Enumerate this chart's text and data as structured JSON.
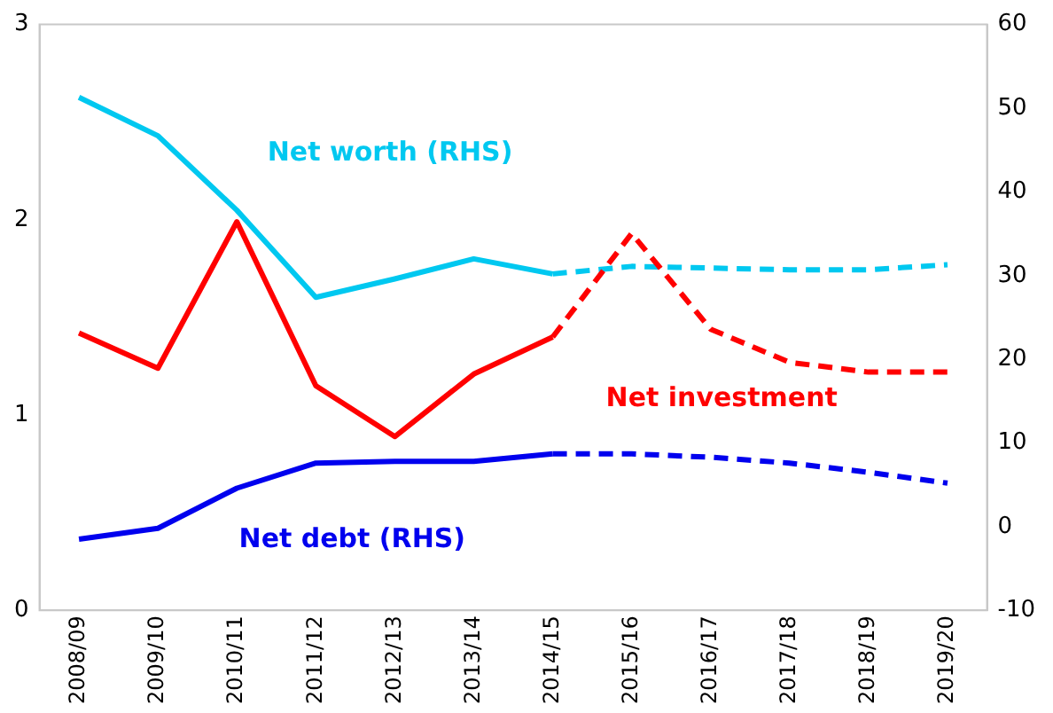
{
  "chart_data": {
    "type": "line",
    "categories": [
      "2008/09",
      "2009/10",
      "2010/11",
      "2011/12",
      "2012/13",
      "2013/14",
      "2014/15",
      "2015/16",
      "2016/17",
      "2017/18",
      "2018/19",
      "2019/20"
    ],
    "series": [
      {
        "name": "Net investment",
        "color": "#ff0000",
        "line_style": "solid",
        "values": [
          1.42,
          1.24,
          1.99,
          1.15,
          0.89,
          1.21,
          1.4,
          null,
          null,
          null,
          null,
          null
        ]
      },
      {
        "color": "#ff0000",
        "line_style": "dashed",
        "values": [
          null,
          null,
          null,
          null,
          null,
          null,
          1.4,
          1.93,
          1.44,
          1.27,
          1.22,
          1.22
        ]
      },
      {
        "name": "Net worth (RHS)",
        "color": "#00c8f0",
        "line_style": "solid",
        "axis": "y2",
        "values": [
          51.3,
          46.7,
          37.8,
          27.4,
          29.6,
          32,
          30.2,
          null,
          null,
          null,
          null,
          null
        ]
      },
      {
        "color": "#00c8f0",
        "line_style": "dashed",
        "axis": "y2",
        "values": [
          null,
          null,
          null,
          null,
          null,
          null,
          30.2,
          31.1,
          30.9,
          30.7,
          30.7,
          31.3
        ]
      },
      {
        "name": "Net debt (RHS)",
        "color": "#0000ee",
        "line_style": "solid",
        "axis": "y2",
        "values": [
          -1.5,
          -0.2,
          4.6,
          7.6,
          7.8,
          7.8,
          8.7,
          null,
          null,
          null,
          null,
          null
        ]
      },
      {
        "color": "#0000ee",
        "line_style": "dashed",
        "axis": "y2",
        "values": [
          null,
          null,
          null,
          null,
          null,
          null,
          8.7,
          8.7,
          8.3,
          7.6,
          6.5,
          5.2
        ]
      }
    ],
    "ylim": [
      0,
      3
    ],
    "yticks": [
      0,
      1,
      2,
      3
    ],
    "y2lim": [
      -10,
      60
    ],
    "y2ticks": [
      -10,
      0,
      10,
      20,
      30,
      40,
      50,
      60
    ],
    "grid": false,
    "legend": false,
    "marker": "none"
  }
}
